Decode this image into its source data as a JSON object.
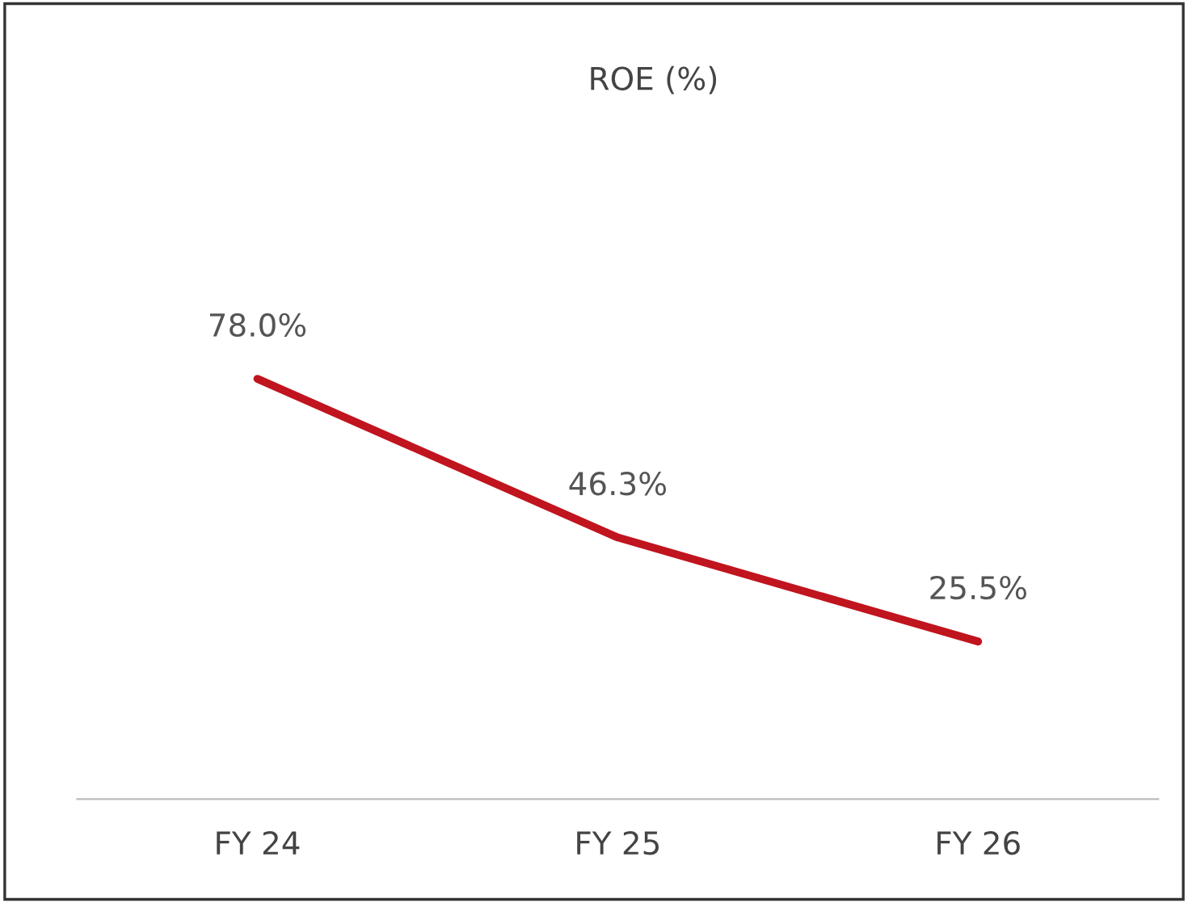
{
  "chart_data": {
    "type": "line",
    "title": "ROE (%)",
    "categories": [
      "FY 24",
      "FY 25",
      "FY 26"
    ],
    "series": [
      {
        "color": "#c0141e",
        "values": [
          78.0,
          46.3,
          25.5
        ],
        "value_labels": [
          "78.0%",
          "46.3%",
          "25.5%"
        ]
      }
    ],
    "grid": false,
    "legend": false,
    "marker": "none",
    "line_style": "solid",
    "tick_labels": "x"
  }
}
